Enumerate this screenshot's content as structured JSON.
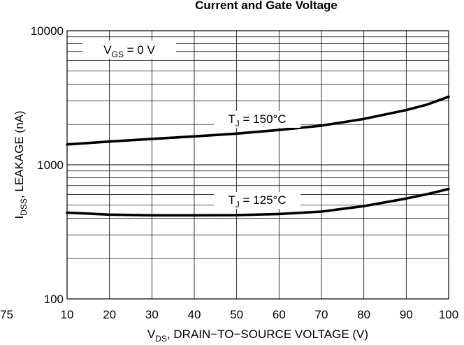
{
  "chart_data": {
    "type": "line",
    "title": "Current and Gate Voltage",
    "xlabel": {
      "main": "V",
      "sub": "DS",
      "rest": ", DRAIN−TO−SOURCE VOLTAGE (V)"
    },
    "ylabel": {
      "main": "I",
      "sub": "DSS",
      "rest": ", LEAKAGE (nA)"
    },
    "x_scale": "linear",
    "y_scale": "log",
    "xlim": [
      10,
      100
    ],
    "ylim": [
      100,
      10000
    ],
    "x_ticks": [
      "10",
      "20",
      "30",
      "40",
      "50",
      "60",
      "70",
      "80",
      "90",
      "100"
    ],
    "x_tick_stray": "75",
    "y_ticks": [
      {
        "value": 100,
        "label": "100"
      },
      {
        "value": 1000,
        "label": "1000"
      },
      {
        "value": 10000,
        "label": "10000"
      }
    ],
    "grid": true,
    "condition": {
      "main": "V",
      "sub": "GS",
      "rest": " = 0 V"
    },
    "series": [
      {
        "name": {
          "main": "T",
          "sub": "J",
          "rest": " = 150°C"
        },
        "x": [
          10,
          20,
          30,
          40,
          50,
          60,
          70,
          80,
          90,
          95,
          100
        ],
        "y": [
          1420,
          1490,
          1560,
          1630,
          1710,
          1820,
          1960,
          2200,
          2560,
          2820,
          3220
        ]
      },
      {
        "name": {
          "main": "T",
          "sub": "J",
          "rest": " = 125°C"
        },
        "x": [
          10,
          20,
          30,
          40,
          50,
          60,
          70,
          80,
          90,
          95,
          100
        ],
        "y": [
          440,
          425,
          420,
          420,
          421,
          430,
          448,
          492,
          560,
          605,
          660
        ]
      }
    ]
  }
}
